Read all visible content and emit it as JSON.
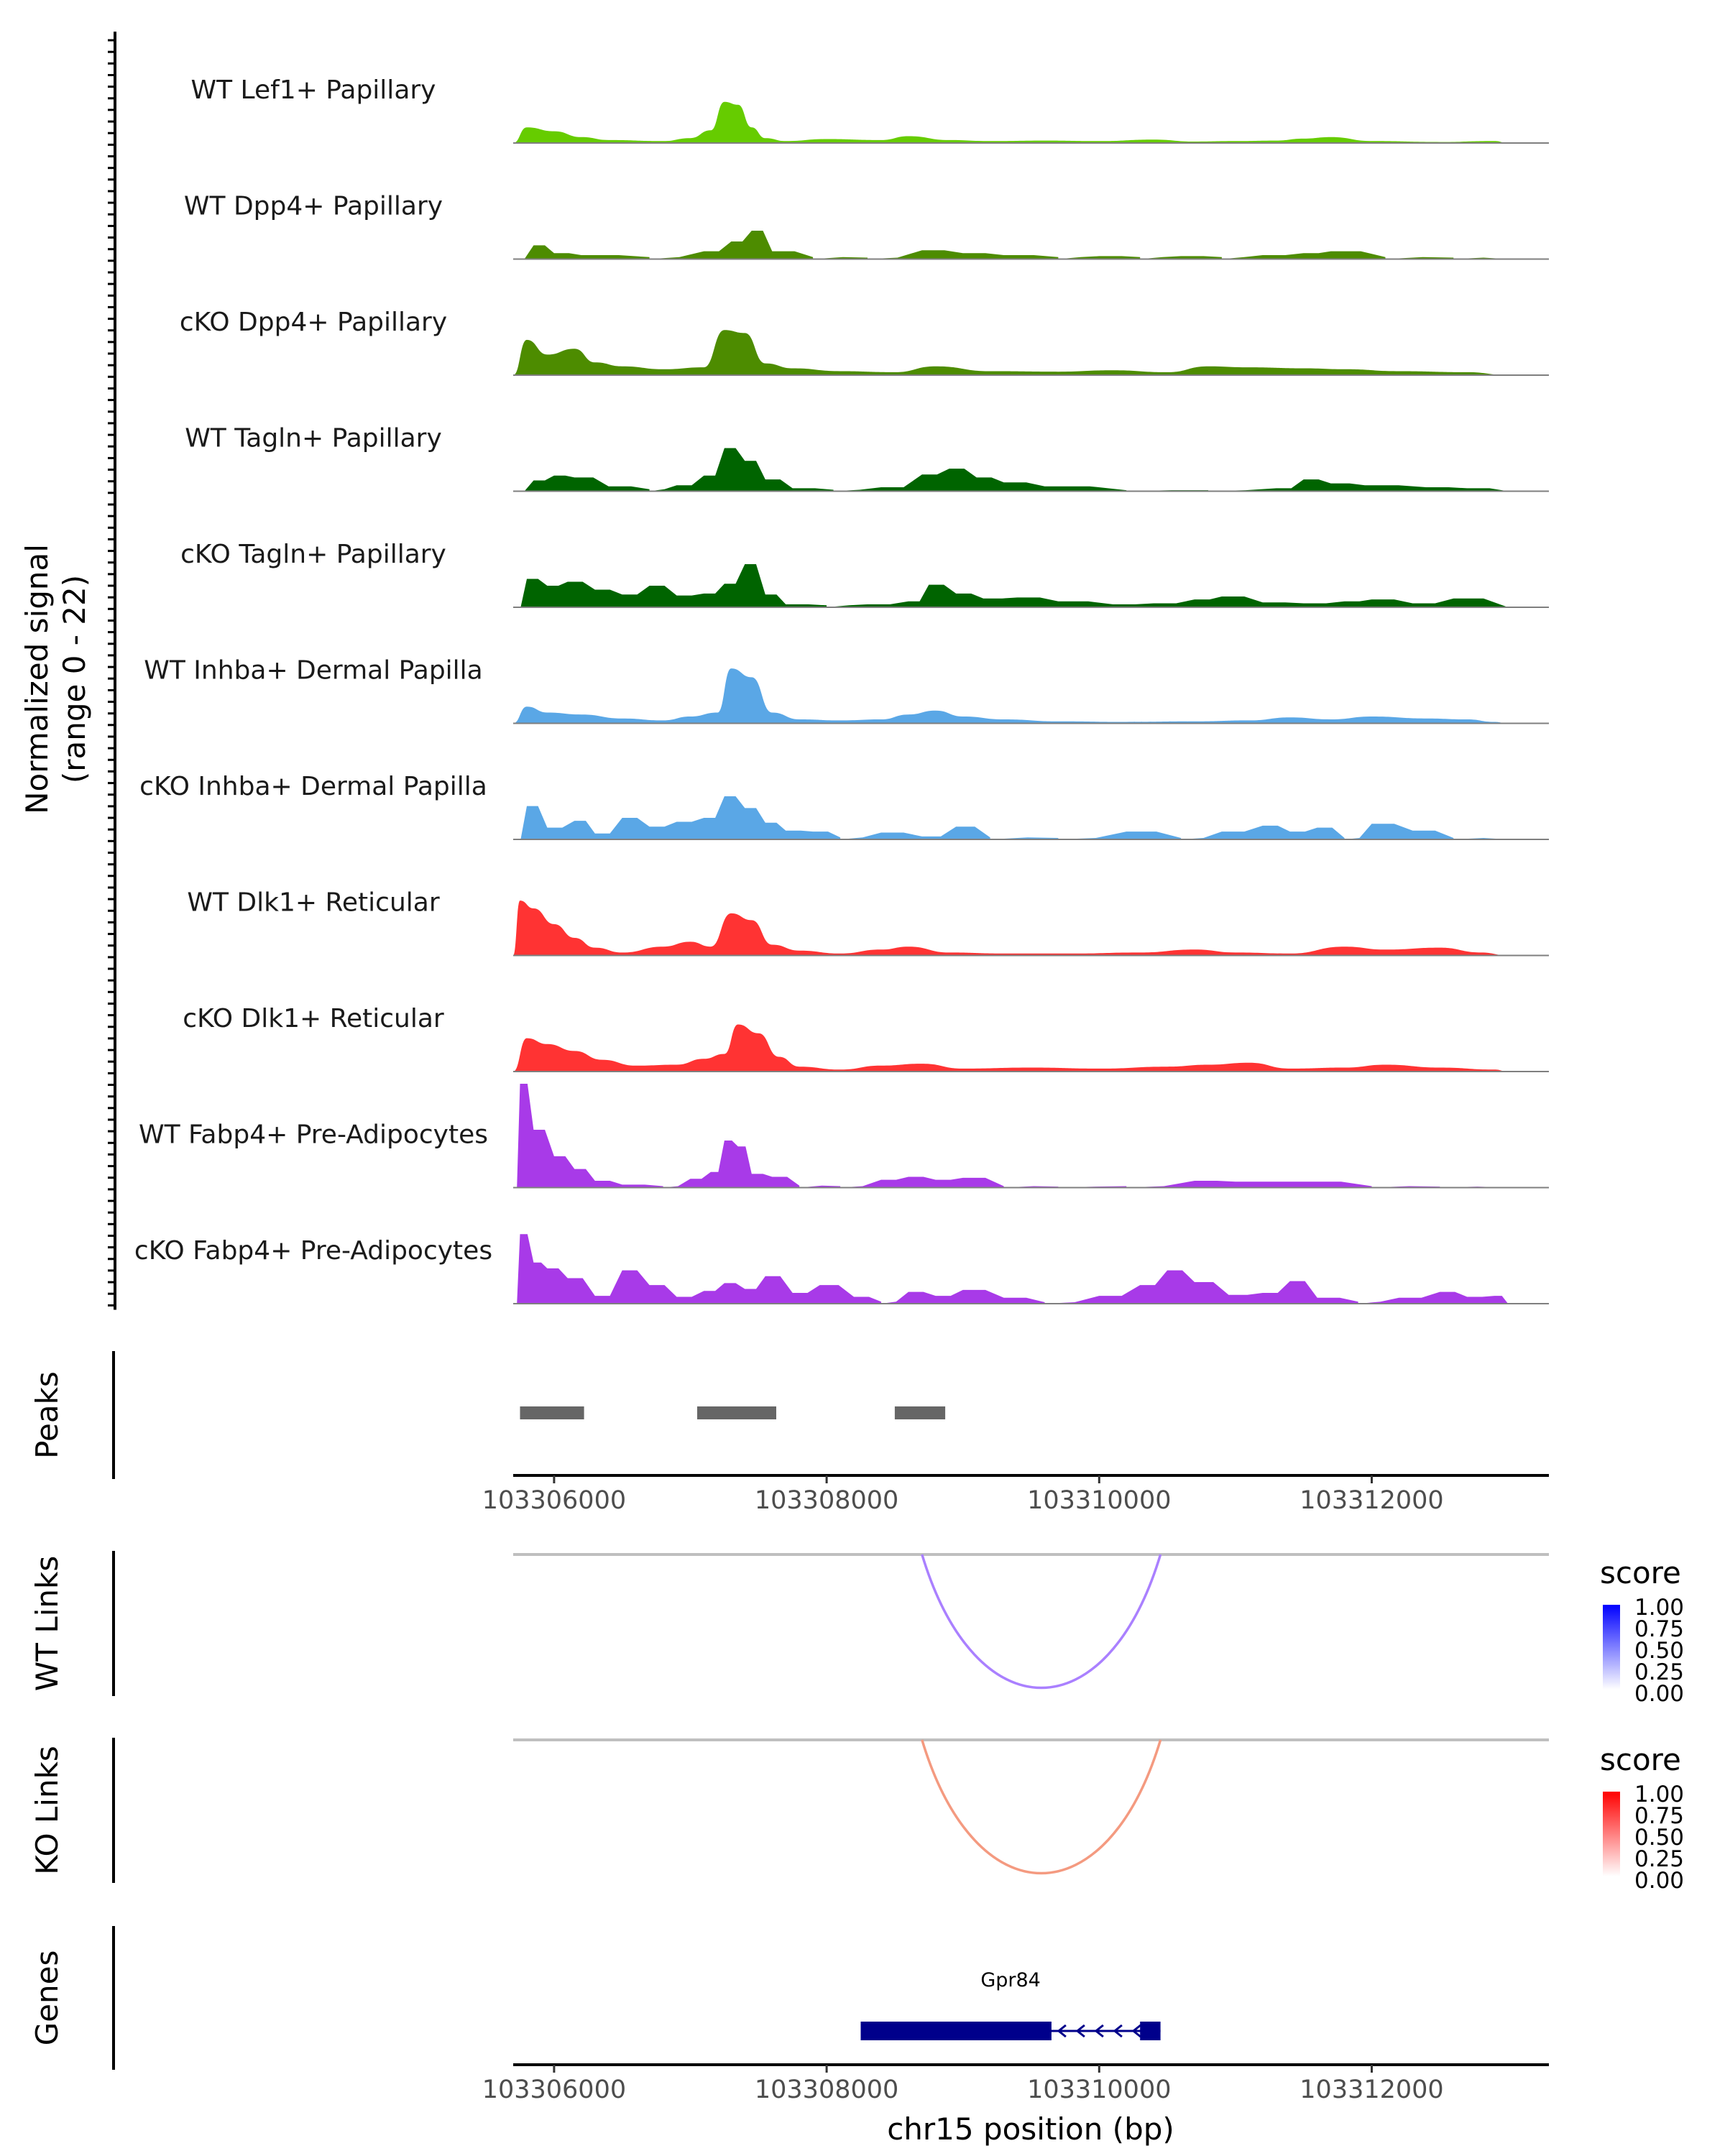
{
  "chart_data": {
    "type": "area",
    "chromosome": "chr15",
    "region": [
      103305700,
      103313300
    ],
    "ylabel": [
      "Normalized signal",
      "(range 0 - 22)"
    ],
    "y_range": [
      0,
      22
    ],
    "xlabel": "chr15 position (bp)",
    "x_ticks": [
      103306000,
      103308000,
      103310000,
      103312000
    ],
    "tracks": [
      {
        "label": "WT Lef1+ Papillary",
        "color": "#66cc00",
        "shape": "smooth",
        "x": [
          103305700,
          103305800,
          103306000,
          103306200,
          103306400,
          103306800,
          103307000,
          103307150,
          103307250,
          103307350,
          103307450,
          103307550,
          103307700,
          103308000,
          103308400,
          103308600,
          103308900,
          103309200,
          103309600,
          103310000,
          103310400,
          103310700,
          103311000,
          103311300,
          103311500,
          103311700,
          103312000,
          103312500,
          103312900,
          103313000
        ],
        "y": [
          0,
          3.2,
          2.4,
          1.2,
          0.6,
          0.4,
          1.0,
          2.6,
          8.4,
          7.8,
          3.2,
          1.0,
          0.4,
          0.8,
          0.6,
          1.4,
          0.6,
          0.4,
          0.5,
          0.4,
          0.7,
          0.3,
          0.4,
          0.5,
          0.9,
          1.2,
          0.4,
          0.2,
          0.4,
          0
        ]
      },
      {
        "label": "WT Dpp4+ Papillary",
        "color": "#4d8c00",
        "shape": "spiky",
        "x": [
          103305700,
          103305850,
          103306000,
          103306200,
          103306700,
          103307100,
          103307300,
          103307450,
          103307600,
          103307900,
          103308300,
          103308700,
          103309000,
          103309300,
          103309700,
          103310000,
          103310300,
          103310600,
          103310900,
          103311200,
          103311500,
          103311700,
          103312100,
          103312600,
          103313000
        ],
        "y": [
          0,
          2.8,
          1.2,
          0.8,
          0.4,
          1.6,
          3.6,
          5.8,
          1.6,
          0.4,
          0.3,
          1.8,
          1.2,
          0.8,
          0.4,
          0.6,
          0.4,
          0.6,
          0.4,
          0.8,
          1.2,
          1.6,
          0.4,
          0.3,
          0
        ]
      },
      {
        "label": "cKO Dpp4+ Papillary",
        "color": "#4d8c00",
        "shape": "smooth",
        "x": [
          103305700,
          103305800,
          103305950,
          103306150,
          103306300,
          103306500,
          103306800,
          103307100,
          103307250,
          103307400,
          103307550,
          103307750,
          103308100,
          103308500,
          103308800,
          103309200,
          103309700,
          103310100,
          103310500,
          103310800,
          103311100,
          103311500,
          103311800,
          103312200,
          103312700,
          103313000
        ],
        "y": [
          0,
          7.2,
          4.2,
          5.4,
          2.6,
          1.8,
          1.2,
          1.6,
          9.2,
          8.6,
          2.4,
          1.4,
          0.8,
          0.6,
          1.8,
          0.8,
          0.7,
          1.0,
          0.6,
          1.8,
          1.6,
          1.4,
          1.2,
          0.8,
          0.6,
          0
        ]
      },
      {
        "label": "WT Tagln+ Papillary",
        "color": "#006400",
        "shape": "spiky",
        "x": [
          103305700,
          103305850,
          103306000,
          103306150,
          103306400,
          103306700,
          103306900,
          103307100,
          103307250,
          103307400,
          103307550,
          103307750,
          103308050,
          103308400,
          103308700,
          103308900,
          103309100,
          103309300,
          103309600,
          103310200,
          103310800,
          103311300,
          103311500,
          103311700,
          103311950,
          103312400,
          103312700,
          103313000
        ],
        "y": [
          0,
          2.2,
          3.2,
          2.8,
          1.0,
          0.4,
          1.2,
          3.2,
          8.8,
          6.2,
          2.4,
          0.6,
          0.3,
          0.8,
          3.4,
          4.6,
          2.8,
          1.8,
          1.0,
          0.2,
          0.2,
          0.6,
          2.4,
          1.6,
          1.2,
          0.8,
          0.6,
          0
        ]
      },
      {
        "label": "cKO Tagln+ Papillary",
        "color": "#006400",
        "shape": "spiky",
        "x": [
          103305700,
          103305800,
          103305950,
          103306100,
          103306300,
          103306500,
          103306700,
          103306900,
          103307100,
          103307250,
          103307400,
          103307550,
          103307700,
          103308000,
          103308300,
          103308600,
          103308750,
          103308950,
          103309150,
          103309400,
          103309700,
          103310100,
          103310400,
          103310700,
          103310900,
          103311200,
          103311500,
          103311800,
          103312000,
          103312300,
          103312600,
          103313000
        ],
        "y": [
          0,
          5.8,
          4.4,
          5.2,
          3.6,
          2.6,
          4.4,
          2.4,
          2.8,
          4.8,
          8.8,
          2.6,
          0.6,
          0.4,
          0.6,
          1.2,
          4.6,
          2.8,
          1.8,
          2.0,
          1.2,
          0.6,
          0.8,
          1.6,
          2.2,
          1.0,
          0.8,
          1.2,
          1.6,
          0.8,
          1.8,
          0
        ]
      },
      {
        "label": "WT Inhba+ Dermal Papilla",
        "color": "#5aa7e6",
        "shape": "smooth",
        "x": [
          103305700,
          103305800,
          103305950,
          103306200,
          103306500,
          103306800,
          103307000,
          103307200,
          103307300,
          103307450,
          103307600,
          103307800,
          103308100,
          103308400,
          103308600,
          103308800,
          103309000,
          103309300,
          103309700,
          103310200,
          103310700,
          103311100,
          103311400,
          103311700,
          103312000,
          103312400,
          103312700,
          103312900,
          103313000
        ],
        "y": [
          0,
          3.4,
          2.2,
          1.8,
          1.0,
          0.6,
          1.4,
          2.2,
          11.2,
          9.4,
          2.2,
          0.8,
          0.6,
          0.8,
          1.8,
          2.6,
          1.4,
          0.8,
          0.4,
          0.3,
          0.4,
          0.6,
          1.2,
          0.8,
          1.4,
          1.0,
          0.8,
          0.3,
          0
        ]
      },
      {
        "label": "cKO Inhba+ Dermal Papilla",
        "color": "#5aa7e6",
        "shape": "spiky",
        "x": [
          103305700,
          103305800,
          103305950,
          103306150,
          103306300,
          103306500,
          103306700,
          103306900,
          103307100,
          103307250,
          103307400,
          103307550,
          103307700,
          103307900,
          103308100,
          103308400,
          103308700,
          103308950,
          103309200,
          103309700,
          103310200,
          103310600,
          103310900,
          103311200,
          103311400,
          103311600,
          103311800,
          103312000,
          103312300,
          103312600,
          103313000
        ],
        "y": [
          0,
          6.8,
          2.4,
          3.8,
          1.2,
          4.4,
          2.6,
          3.6,
          4.4,
          8.8,
          6.4,
          3.4,
          1.8,
          1.6,
          0.4,
          1.4,
          0.6,
          2.6,
          0.4,
          0.3,
          1.6,
          0.3,
          1.6,
          2.8,
          1.6,
          2.4,
          0.3,
          3.2,
          1.8,
          0.3,
          0
        ]
      },
      {
        "label": "WT Dlk1+ Reticular",
        "color": "#ff3333",
        "shape": "smooth",
        "x": [
          103305700,
          103305750,
          103305850,
          103306000,
          103306150,
          103306300,
          103306500,
          103306800,
          103307000,
          103307150,
          103307300,
          103307450,
          103307600,
          103307800,
          103308100,
          103308400,
          103308600,
          103308900,
          103309300,
          103309800,
          103310300,
          103310700,
          103311000,
          103311400,
          103311800,
          103312100,
          103312500,
          103312800,
          103313000
        ],
        "y": [
          0,
          11.2,
          9.6,
          6.4,
          3.6,
          1.6,
          0.6,
          1.8,
          2.8,
          1.8,
          8.6,
          7.2,
          2.2,
          1.0,
          0.4,
          1.2,
          1.8,
          0.6,
          0.4,
          0.4,
          0.6,
          1.2,
          0.6,
          0.4,
          1.8,
          1.2,
          1.6,
          0.6,
          0
        ]
      },
      {
        "label": "cKO Dlk1+ Reticular",
        "color": "#ff3333",
        "shape": "smooth",
        "x": [
          103305700,
          103305800,
          103305950,
          103306150,
          103306350,
          103306600,
          103306900,
          103307100,
          103307250,
          103307350,
          103307500,
          103307650,
          103307800,
          103308100,
          103308400,
          103308700,
          103309000,
          103309500,
          103310000,
          103310500,
          103310800,
          103311100,
          103311400,
          103311800,
          103312100,
          103312500,
          103312900,
          103313000
        ],
        "y": [
          0,
          6.8,
          5.6,
          4.2,
          2.4,
          1.2,
          1.4,
          2.6,
          3.6,
          9.6,
          7.8,
          3.0,
          1.0,
          0.4,
          1.2,
          1.6,
          0.6,
          0.8,
          0.6,
          1.0,
          1.4,
          1.8,
          0.6,
          0.8,
          1.4,
          0.8,
          0.4,
          0
        ]
      },
      {
        "label": "WT Fabp4+ Pre-Adipocytes",
        "color": "#a83ae8",
        "shape": "spiky",
        "x": [
          103305700,
          103305750,
          103305850,
          103306000,
          103306150,
          103306300,
          103306500,
          103306800,
          103307000,
          103307150,
          103307250,
          103307350,
          103307450,
          103307600,
          103307800,
          103308100,
          103308400,
          103308600,
          103308800,
          103309000,
          103309300,
          103309700,
          103310200,
          103310700,
          103311000,
          103311500,
          103312000,
          103312500,
          103313000
        ],
        "y": [
          0,
          21.2,
          11.8,
          6.4,
          3.8,
          1.4,
          0.6,
          0.3,
          1.8,
          3.2,
          9.6,
          8.4,
          2.8,
          2.2,
          0.4,
          0.3,
          1.6,
          2.2,
          1.6,
          2.0,
          0.3,
          0.2,
          0.3,
          1.4,
          1.2,
          1.2,
          0.3,
          0.2,
          0
        ]
      },
      {
        "label": "cKO Fabp4+ Pre-Adipocytes",
        "color": "#a83ae8",
        "shape": "spiky",
        "x": [
          103305700,
          103305750,
          103305850,
          103305950,
          103306100,
          103306300,
          103306500,
          103306700,
          103306900,
          103307100,
          103307250,
          103307400,
          103307550,
          103307750,
          103307950,
          103308200,
          103308400,
          103308600,
          103308800,
          103309000,
          103309300,
          103309600,
          103310000,
          103310300,
          103310500,
          103310700,
          103310950,
          103311200,
          103311400,
          103311600,
          103311900,
          103312200,
          103312500,
          103312700,
          103312900,
          103313000
        ],
        "y": [
          0,
          14.2,
          8.4,
          7.2,
          5.2,
          1.6,
          6.8,
          3.8,
          1.4,
          2.6,
          4.2,
          3.0,
          5.6,
          2.2,
          3.8,
          1.4,
          0.4,
          2.4,
          1.6,
          2.8,
          1.2,
          0.3,
          1.6,
          3.8,
          6.8,
          4.4,
          1.8,
          2.2,
          4.6,
          1.2,
          0.4,
          1.2,
          2.4,
          1.4,
          1.6,
          0
        ]
      }
    ],
    "peaks": {
      "label": "Peaks",
      "color": "#666666",
      "ranges": [
        [
          103305750,
          103306220
        ],
        [
          103307050,
          103307630
        ],
        [
          103308500,
          103308870
        ]
      ]
    },
    "links": [
      {
        "label": "WT Links",
        "legend_title": "score",
        "legend_ticks": [
          "1.00",
          "0.75",
          "0.50",
          "0.25",
          "0.00"
        ],
        "from": 103308700,
        "to": 103310450,
        "score": 0.5,
        "color_high": "#0000ff",
        "color_low": "#ffffff",
        "arc_color": "#aa80ff"
      },
      {
        "label": "KO Links",
        "legend_title": "score",
        "legend_ticks": [
          "1.00",
          "0.75",
          "0.50",
          "0.25",
          "0.00"
        ],
        "from": 103308700,
        "to": 103310450,
        "score": 0.5,
        "color_high": "#ff0000",
        "color_low": "#ffffff",
        "arc_color": "#f49a80"
      }
    ],
    "genes": {
      "label": "Genes",
      "color": "#00008b",
      "items": [
        {
          "name": "Gpr84",
          "start": 103308250,
          "end": 103310450,
          "strand": "-",
          "exons": [
            [
              103308250,
              103309650
            ],
            [
              103310300,
              103310450
            ]
          ]
        }
      ]
    }
  }
}
